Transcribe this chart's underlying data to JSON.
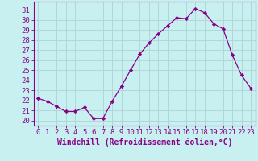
{
  "x": [
    0,
    1,
    2,
    3,
    4,
    5,
    6,
    7,
    8,
    9,
    10,
    11,
    12,
    13,
    14,
    15,
    16,
    17,
    18,
    19,
    20,
    21,
    22,
    23
  ],
  "y": [
    22.2,
    21.9,
    21.4,
    20.9,
    20.9,
    21.3,
    20.2,
    20.2,
    21.9,
    23.4,
    25.0,
    26.6,
    27.7,
    28.6,
    29.4,
    30.2,
    30.1,
    31.1,
    30.7,
    29.6,
    29.1,
    26.5,
    24.5,
    23.2
  ],
  "line_color": "#880088",
  "marker": "D",
  "marker_size": 2.2,
  "bg_color": "#c8f0f0",
  "grid_color": "#b0d8d8",
  "xlabel": "Windchill (Refroidissement éolien,°C)",
  "ylabel_ticks": [
    20,
    21,
    22,
    23,
    24,
    25,
    26,
    27,
    28,
    29,
    30,
    31
  ],
  "ylim": [
    19.5,
    31.8
  ],
  "xlim": [
    -0.5,
    23.5
  ],
  "xlabel_fontsize": 7,
  "tick_fontsize": 6.5,
  "title": ""
}
